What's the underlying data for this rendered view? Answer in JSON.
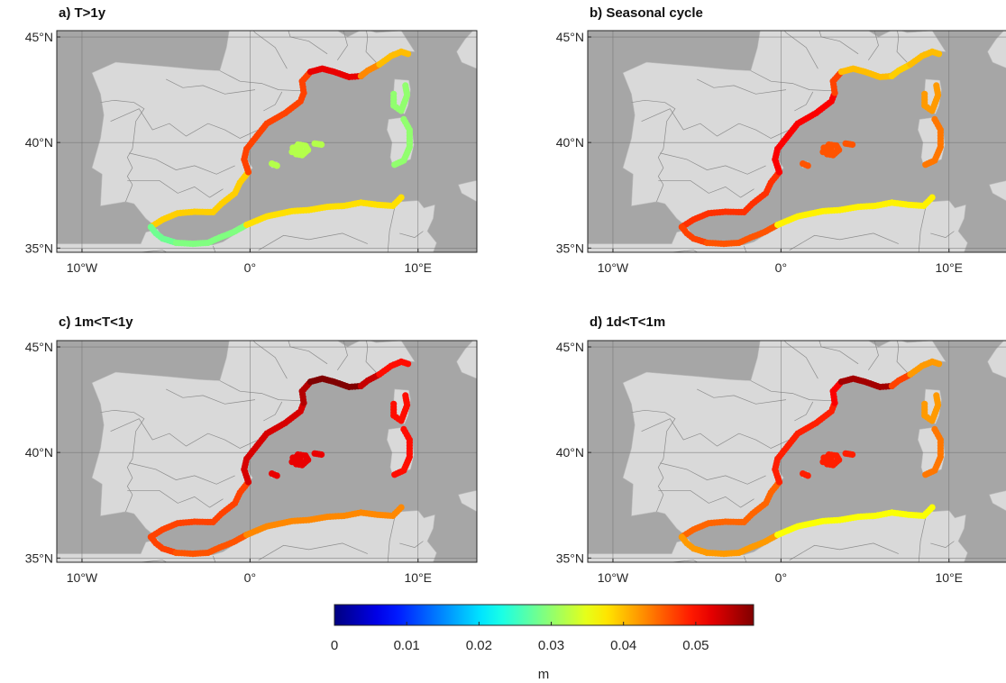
{
  "figure": {
    "lon_range": [
      -11.5,
      13.5
    ],
    "lat_range": [
      34.8,
      45.3
    ],
    "x_ticks": [
      {
        "lon": -10,
        "label": "10°W"
      },
      {
        "lon": 0,
        "label": "0°"
      },
      {
        "lon": 10,
        "label": "10°E"
      }
    ],
    "y_ticks": [
      {
        "lat": 35,
        "label": "35°N"
      },
      {
        "lat": 40,
        "label": "40°N"
      },
      {
        "lat": 45,
        "label": "45°N"
      }
    ],
    "colors": {
      "sea": "#a6a6a6",
      "land": "#d9d9d9",
      "border": "#8c8c8c",
      "grid": "#6e6e6e"
    },
    "panels": [
      {
        "title": "a) T>1y",
        "colormap_min": 0,
        "colormap_max": 0.058,
        "values": {
          "spain_south": 0.039,
          "alboran_north": 0.028,
          "alboran_south": 0.029,
          "algeria": 0.038,
          "tunisia": 0.03,
          "spain_east": 0.047,
          "catalonia": 0.047,
          "gulf_lion": 0.052,
          "provence": 0.043,
          "liguria": 0.04,
          "corsica": 0.03,
          "sardinia": 0.03,
          "balearics": 0.032
        }
      },
      {
        "title": "b) Seasonal cycle",
        "colormap_min": 0,
        "colormap_max": 0.058,
        "values": {
          "spain_south": 0.048,
          "alboran_north": 0.047,
          "alboran_south": 0.046,
          "algeria": 0.037,
          "tunisia": 0.033,
          "spain_east": 0.051,
          "catalonia": 0.047,
          "gulf_lion": 0.04,
          "provence": 0.039,
          "liguria": 0.04,
          "corsica": 0.042,
          "sardinia": 0.044,
          "balearics": 0.046
        }
      },
      {
        "title": "c) 1m<T<1y",
        "colormap_min": 0,
        "colormap_max": 0.058,
        "values": {
          "spain_south": 0.047,
          "alboran_north": 0.047,
          "alboran_south": 0.046,
          "algeria": 0.043,
          "tunisia": 0.04,
          "spain_east": 0.053,
          "catalonia": 0.055,
          "gulf_lion": 0.058,
          "provence": 0.054,
          "liguria": 0.05,
          "corsica": 0.05,
          "sardinia": 0.05,
          "balearics": 0.052
        }
      },
      {
        "title": "d) 1d<T<1m",
        "colormap_min": 0,
        "colormap_max": 0.058,
        "values": {
          "spain_south": 0.045,
          "alboran_north": 0.042,
          "alboran_south": 0.042,
          "algeria": 0.036,
          "tunisia": 0.03,
          "spain_east": 0.049,
          "catalonia": 0.051,
          "gulf_lion": 0.056,
          "provence": 0.047,
          "liguria": 0.042,
          "corsica": 0.042,
          "sardinia": 0.044,
          "balearics": 0.049
        }
      }
    ]
  },
  "colorbar": {
    "range": [
      0,
      0.058
    ],
    "ticks": [
      {
        "value": 0,
        "label": "0"
      },
      {
        "value": 0.01,
        "label": "0.01"
      },
      {
        "value": 0.02,
        "label": "0.02"
      },
      {
        "value": 0.03,
        "label": "0.03"
      },
      {
        "value": 0.04,
        "label": "0.04"
      },
      {
        "value": 0.05,
        "label": "0.05"
      }
    ],
    "label": "m"
  }
}
